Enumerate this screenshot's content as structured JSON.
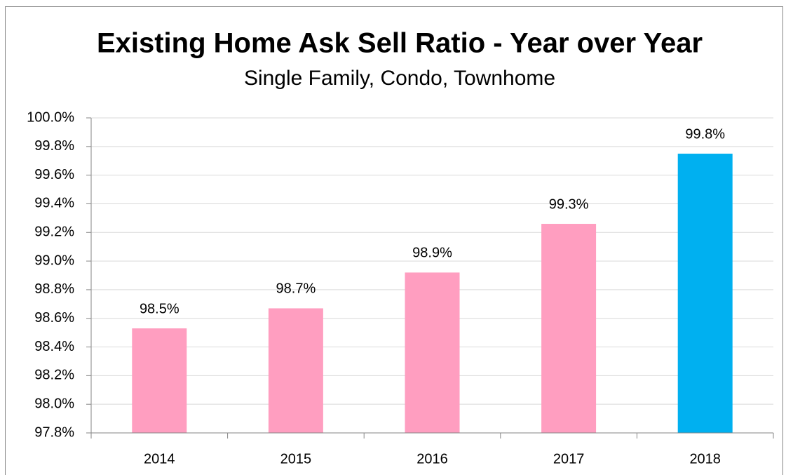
{
  "chart_data": {
    "type": "bar",
    "title": "Existing Home Ask Sell Ratio - Year over Year",
    "subtitle": "Single Family, Condo, Townhome",
    "categories": [
      "2014",
      "2015",
      "2016",
      "2017",
      "2018"
    ],
    "values": [
      98.53,
      98.67,
      98.92,
      99.26,
      99.75
    ],
    "value_labels": [
      "98.5%",
      "98.7%",
      "98.9%",
      "99.3%",
      "99.8%"
    ],
    "colors": [
      "#ff9ec0",
      "#ff9ec0",
      "#ff9ec0",
      "#ff9ec0",
      "#00b0f0"
    ],
    "ylim": [
      97.8,
      100
    ],
    "yticks": [
      {
        "value": 97.8,
        "label": "97.8%"
      },
      {
        "value": 98,
        "label": "98.0%"
      },
      {
        "value": 98.2,
        "label": "98.2%"
      },
      {
        "value": 98.4,
        "label": "98.4%"
      },
      {
        "value": 98.6,
        "label": "98.6%"
      },
      {
        "value": 98.8,
        "label": "98.8%"
      },
      {
        "value": 99,
        "label": "99.0%"
      },
      {
        "value": 99.2,
        "label": "99.2%"
      },
      {
        "value": 99.4,
        "label": "99.4%"
      },
      {
        "value": 99.6,
        "label": "99.6%"
      },
      {
        "value": 99.8,
        "label": "99.8%"
      },
      {
        "value": 100,
        "label": "100.0%"
      }
    ],
    "grid": true
  }
}
